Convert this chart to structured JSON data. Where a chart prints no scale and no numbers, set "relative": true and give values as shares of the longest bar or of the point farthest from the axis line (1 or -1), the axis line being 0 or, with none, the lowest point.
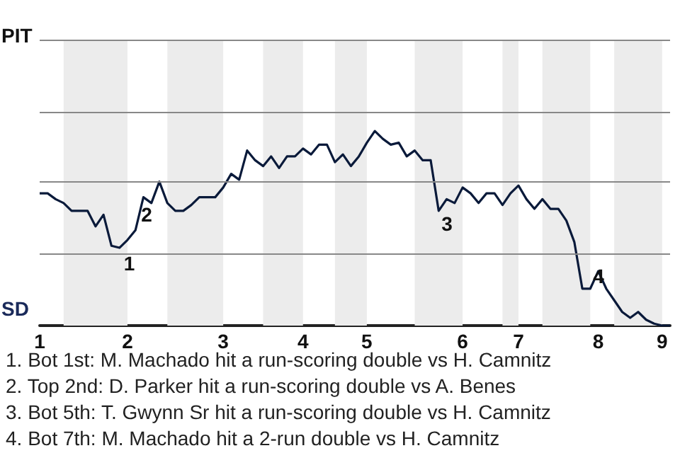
{
  "chart_data": {
    "type": "line",
    "marker": "none",
    "relative": true,
    "categories": [
      "1",
      null,
      null,
      null,
      null,
      null,
      null,
      null,
      null,
      null,
      null,
      "2",
      null,
      null,
      null,
      null,
      null,
      null,
      null,
      null,
      null,
      null,
      null,
      "3",
      null,
      null,
      null,
      null,
      null,
      null,
      null,
      null,
      null,
      "4",
      null,
      null,
      null,
      null,
      null,
      null,
      null,
      "5",
      null,
      null,
      null,
      null,
      null,
      null,
      null,
      null,
      null,
      null,
      null,
      "6",
      null,
      null,
      null,
      null,
      null,
      null,
      "7",
      null,
      null,
      null,
      null,
      null,
      null,
      null,
      null,
      null,
      "8",
      null,
      null,
      null,
      null,
      null,
      null,
      null,
      "9",
      null
    ],
    "series": [
      {
        "color": "#0a1a3a",
        "values": [
          0.68,
          0.68,
          0.65,
          0.63,
          0.59,
          0.59,
          0.59,
          0.51,
          0.57,
          0.41,
          0.4,
          0.44,
          0.49,
          0.66,
          0.63,
          0.74,
          0.63,
          0.59,
          0.59,
          0.62,
          0.66,
          0.66,
          0.66,
          0.71,
          0.78,
          0.75,
          0.9,
          0.85,
          0.82,
          0.87,
          0.81,
          0.87,
          0.87,
          0.91,
          0.88,
          0.93,
          0.93,
          0.84,
          0.88,
          0.82,
          0.87,
          0.94,
          1,
          0.96,
          0.93,
          0.94,
          0.87,
          0.9,
          0.85,
          0.85,
          0.59,
          0.65,
          0.63,
          0.71,
          0.68,
          0.63,
          0.68,
          0.68,
          0.62,
          0.68,
          0.72,
          0.65,
          0.6,
          0.65,
          0.6,
          0.6,
          0.54,
          0.43,
          0.19,
          0.19,
          0.28,
          0.19,
          0.13,
          0.07,
          0.04,
          0.07,
          0.03,
          0.01,
          0,
          0
        ]
      }
    ],
    "ref_lines": [
      {
        "axis": "y",
        "value": 0.37,
        "color": "#888888"
      },
      {
        "axis": "y",
        "value": 0.74,
        "color": "#888888"
      },
      {
        "axis": "y",
        "value": 1.1,
        "color": "#888888"
      },
      {
        "axis": "y",
        "value": 1.47,
        "color": "#888888"
      }
    ],
    "annotations": [
      "PIT",
      "SD",
      "1",
      "2",
      "3",
      "4",
      "1. Bot 1st: M. Machado hit a run-scoring double vs H. Camnitz",
      "2. Top 2nd: D. Parker hit a run-scoring double vs A. Benes",
      "3. Bot 5th: T. Gwynn Sr hit a run-scoring double vs H. Camnitz",
      "4. Bot 7th: M. Machado hit a 2-run double vs H. Camnitz"
    ]
  }
}
